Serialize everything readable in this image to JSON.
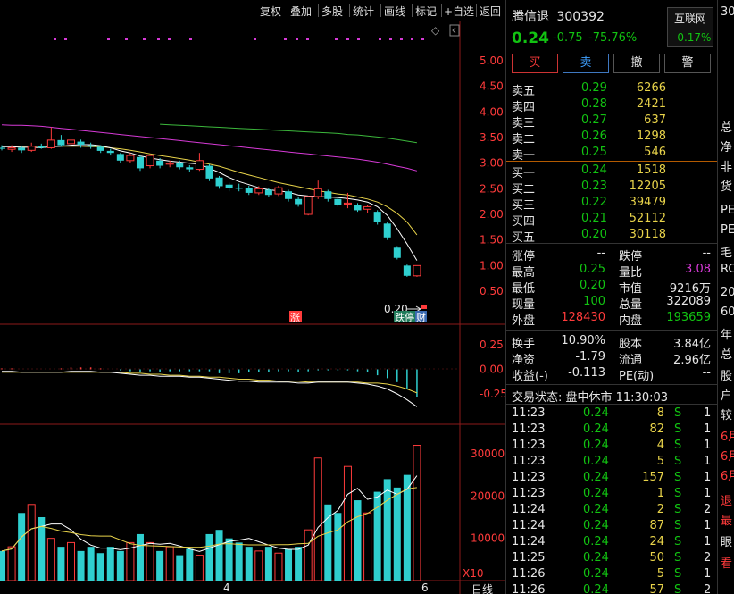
{
  "toolbar": {
    "items": [
      "复权",
      "叠加",
      "多股",
      "统计",
      "画线",
      "标记",
      "+自选",
      "返回"
    ],
    "diamond": "◇"
  },
  "chart": {
    "price_axis": [
      "5.00",
      "4.50",
      "4.00",
      "3.50",
      "3.00",
      "2.50",
      "2.00",
      "1.50",
      "1.00",
      "0.50"
    ],
    "macd_axis": [
      "0.25",
      "0.00",
      "-0.25"
    ],
    "vol_axis": [
      "30000",
      "20000",
      "10000"
    ],
    "vol_unit": "X10",
    "x_axis": [
      "4",
      "6",
      "日线"
    ],
    "marker_zhang": "涨",
    "last_price_label": "0.20",
    "tag_limit_down": "跌停",
    "tag_cai": "财",
    "candles": [
      {
        "o": 3.3,
        "c": 3.28,
        "h": 3.35,
        "l": 3.25
      },
      {
        "o": 3.27,
        "c": 3.3,
        "h": 3.35,
        "l": 3.22
      },
      {
        "o": 3.3,
        "c": 3.25,
        "h": 3.33,
        "l": 3.2
      },
      {
        "o": 3.25,
        "c": 3.33,
        "h": 3.4,
        "l": 3.22
      },
      {
        "o": 3.33,
        "c": 3.3,
        "h": 3.38,
        "l": 3.28
      },
      {
        "o": 3.3,
        "c": 3.45,
        "h": 3.7,
        "l": 3.28
      },
      {
        "o": 3.45,
        "c": 3.35,
        "h": 3.55,
        "l": 3.32
      },
      {
        "o": 3.38,
        "c": 3.45,
        "h": 3.5,
        "l": 3.35
      },
      {
        "o": 3.42,
        "c": 3.36,
        "h": 3.46,
        "l": 3.3
      },
      {
        "o": 3.35,
        "c": 3.32,
        "h": 3.4,
        "l": 3.28
      },
      {
        "o": 3.32,
        "c": 3.24,
        "h": 3.35,
        "l": 3.2
      },
      {
        "o": 3.24,
        "c": 3.2,
        "h": 3.28,
        "l": 3.15
      },
      {
        "o": 3.18,
        "c": 3.05,
        "h": 3.2,
        "l": 3.0
      },
      {
        "o": 3.05,
        "c": 3.15,
        "h": 3.2,
        "l": 3.0
      },
      {
        "o": 3.12,
        "c": 2.9,
        "h": 3.15,
        "l": 2.85
      },
      {
        "o": 2.95,
        "c": 3.15,
        "h": 3.18,
        "l": 2.9
      },
      {
        "o": 3.05,
        "c": 2.95,
        "h": 3.1,
        "l": 2.9
      },
      {
        "o": 2.98,
        "c": 3.0,
        "h": 3.05,
        "l": 2.92
      },
      {
        "o": 3.0,
        "c": 2.92,
        "h": 3.05,
        "l": 2.88
      },
      {
        "o": 2.92,
        "c": 2.88,
        "h": 2.96,
        "l": 2.82
      },
      {
        "o": 2.88,
        "c": 3.05,
        "h": 3.2,
        "l": 2.85
      },
      {
        "o": 2.95,
        "c": 2.7,
        "h": 2.98,
        "l": 2.65
      },
      {
        "o": 2.72,
        "c": 2.55,
        "h": 2.75,
        "l": 2.5
      },
      {
        "o": 2.58,
        "c": 2.52,
        "h": 2.62,
        "l": 2.45
      },
      {
        "o": 2.52,
        "c": 2.5,
        "h": 2.6,
        "l": 2.45
      },
      {
        "o": 2.52,
        "c": 2.42,
        "h": 2.56,
        "l": 2.38
      },
      {
        "o": 2.42,
        "c": 2.5,
        "h": 2.55,
        "l": 2.38
      },
      {
        "o": 2.48,
        "c": 2.38,
        "h": 2.52,
        "l": 2.34
      },
      {
        "o": 2.4,
        "c": 2.52,
        "h": 2.56,
        "l": 2.36
      },
      {
        "o": 2.45,
        "c": 2.3,
        "h": 2.48,
        "l": 2.25
      },
      {
        "o": 2.3,
        "c": 2.2,
        "h": 2.34,
        "l": 2.15
      },
      {
        "o": 2.0,
        "c": 2.35,
        "h": 2.36,
        "l": 1.98
      },
      {
        "o": 2.35,
        "c": 2.5,
        "h": 2.66,
        "l": 2.3
      },
      {
        "o": 2.45,
        "c": 2.3,
        "h": 2.48,
        "l": 2.25
      },
      {
        "o": 2.3,
        "c": 2.18,
        "h": 2.35,
        "l": 2.15
      },
      {
        "o": 2.2,
        "c": 2.22,
        "h": 2.42,
        "l": 2.12
      },
      {
        "o": 2.18,
        "c": 2.08,
        "h": 2.22,
        "l": 2.05
      },
      {
        "o": 2.1,
        "c": 2.15,
        "h": 2.18,
        "l": 2.02
      },
      {
        "o": 2.05,
        "c": 1.85,
        "h": 2.08,
        "l": 1.8
      },
      {
        "o": 1.82,
        "c": 1.55,
        "h": 1.85,
        "l": 1.5
      },
      {
        "o": 1.35,
        "c": 1.15,
        "h": 1.38,
        "l": 1.12
      },
      {
        "o": 1.0,
        "c": 0.8,
        "h": 1.02,
        "l": 0.78
      },
      {
        "o": 0.8,
        "c": 1.0,
        "h": 1.0,
        "l": 0.78
      }
    ],
    "ma_short": [
      3.32,
      3.32,
      3.31,
      3.31,
      3.3,
      3.32,
      3.33,
      3.35,
      3.36,
      3.36,
      3.34,
      3.3,
      3.24,
      3.2,
      3.14,
      3.1,
      3.07,
      3.04,
      3.02,
      3.0,
      2.98,
      2.9,
      2.82,
      2.72,
      2.64,
      2.58,
      2.52,
      2.48,
      2.46,
      2.43,
      2.38,
      2.36,
      2.35,
      2.34,
      2.33,
      2.31,
      2.28,
      2.24,
      2.15,
      1.98,
      1.72,
      1.42,
      1.1
    ],
    "ma_mid": [
      3.33,
      3.33,
      3.33,
      3.33,
      3.33,
      3.33,
      3.33,
      3.33,
      3.33,
      3.32,
      3.32,
      3.3,
      3.28,
      3.25,
      3.22,
      3.18,
      3.15,
      3.12,
      3.09,
      3.06,
      3.02,
      2.98,
      2.94,
      2.88,
      2.82,
      2.77,
      2.72,
      2.67,
      2.62,
      2.58,
      2.54,
      2.5,
      2.46,
      2.43,
      2.4,
      2.38,
      2.34,
      2.3,
      2.24,
      2.15,
      2.02,
      1.85,
      1.6
    ],
    "ma_long": [
      3.75,
      3.74,
      3.74,
      3.73,
      3.72,
      3.7,
      3.68,
      3.66,
      3.64,
      3.62,
      3.6,
      3.58,
      3.56,
      3.54,
      3.52,
      3.5,
      3.48,
      3.46,
      3.44,
      3.42,
      3.4,
      3.38,
      3.36,
      3.34,
      3.32,
      3.3,
      3.28,
      3.26,
      3.24,
      3.22,
      3.2,
      3.18,
      3.16,
      3.14,
      3.12,
      3.1,
      3.08,
      3.05,
      3.02,
      2.98,
      2.94,
      2.9,
      2.85
    ],
    "ma_green": [
      null,
      null,
      null,
      null,
      null,
      null,
      null,
      null,
      null,
      null,
      null,
      null,
      null,
      null,
      null,
      null,
      3.76,
      3.75,
      3.74,
      3.73,
      3.72,
      3.71,
      3.7,
      3.69,
      3.68,
      3.67,
      3.66,
      3.65,
      3.64,
      3.63,
      3.62,
      3.61,
      3.6,
      3.59,
      3.58,
      3.56,
      3.55,
      3.53,
      3.51,
      3.49,
      3.46,
      3.43,
      3.4
    ],
    "volumes": [
      7000,
      8000,
      16000,
      18000,
      15000,
      10000,
      8000,
      9000,
      7000,
      8000,
      6500,
      8000,
      7000,
      9000,
      11000,
      9000,
      7000,
      8000,
      6000,
      7500,
      6000,
      11000,
      12000,
      10000,
      9000,
      8000,
      7000,
      8000,
      6500,
      7500,
      8000,
      12000,
      29000,
      18000,
      16000,
      27000,
      19000,
      16000,
      21000,
      24000,
      22000,
      25000,
      32000
    ],
    "macd_dif": [
      -0.02,
      -0.02,
      -0.03,
      -0.03,
      -0.03,
      -0.03,
      -0.03,
      -0.02,
      -0.02,
      -0.02,
      -0.03,
      -0.03,
      -0.04,
      -0.05,
      -0.06,
      -0.06,
      -0.07,
      -0.07,
      -0.07,
      -0.08,
      -0.08,
      -0.09,
      -0.1,
      -0.11,
      -0.12,
      -0.12,
      -0.13,
      -0.13,
      -0.13,
      -0.13,
      -0.14,
      -0.14,
      -0.13,
      -0.13,
      -0.13,
      -0.13,
      -0.14,
      -0.15,
      -0.17,
      -0.2,
      -0.25,
      -0.31,
      -0.38
    ],
    "macd_dea": [
      -0.03,
      -0.03,
      -0.03,
      -0.03,
      -0.03,
      -0.03,
      -0.03,
      -0.03,
      -0.03,
      -0.03,
      -0.03,
      -0.03,
      -0.03,
      -0.04,
      -0.04,
      -0.05,
      -0.05,
      -0.06,
      -0.06,
      -0.07,
      -0.07,
      -0.08,
      -0.08,
      -0.09,
      -0.1,
      -0.1,
      -0.11,
      -0.11,
      -0.12,
      -0.12,
      -0.12,
      -0.13,
      -0.13,
      -0.13,
      -0.13,
      -0.13,
      -0.13,
      -0.14,
      -0.14,
      -0.15,
      -0.17,
      -0.2,
      -0.24
    ],
    "macd_bar": [
      0.01,
      0.01,
      0.0,
      0.0,
      0.0,
      0.0,
      0.01,
      0.02,
      0.02,
      0.02,
      0.01,
      0.0,
      -0.01,
      -0.02,
      -0.03,
      -0.02,
      -0.03,
      -0.02,
      -0.02,
      -0.02,
      -0.02,
      -0.02,
      -0.04,
      -0.04,
      -0.04,
      -0.03,
      -0.03,
      -0.03,
      -0.02,
      -0.02,
      -0.03,
      -0.02,
      -0.01,
      -0.01,
      -0.01,
      -0.01,
      -0.02,
      -0.03,
      -0.06,
      -0.09,
      -0.13,
      -0.2,
      -0.28
    ]
  },
  "quote": {
    "name": "腾信退",
    "code": "300392",
    "price": "0.24",
    "change": "-0.75",
    "change_pct": "-75.76%",
    "index_name": "互联网",
    "index_pct": "-0.17%",
    "buttons": {
      "buy": "买",
      "sell": "卖",
      "cancel": "撤",
      "alert": "警"
    },
    "asks": [
      {
        "label": "卖五",
        "price": "0.29",
        "vol": "6266"
      },
      {
        "label": "卖四",
        "price": "0.28",
        "vol": "2421"
      },
      {
        "label": "卖三",
        "price": "0.27",
        "vol": "637"
      },
      {
        "label": "卖二",
        "price": "0.26",
        "vol": "1298"
      },
      {
        "label": "卖一",
        "price": "0.25",
        "vol": "546"
      }
    ],
    "bids": [
      {
        "label": "买一",
        "price": "0.24",
        "vol": "1518"
      },
      {
        "label": "买二",
        "price": "0.23",
        "vol": "12205"
      },
      {
        "label": "买三",
        "price": "0.22",
        "vol": "39479"
      },
      {
        "label": "买四",
        "price": "0.21",
        "vol": "52112"
      },
      {
        "label": "买五",
        "price": "0.20",
        "vol": "30118"
      }
    ],
    "stats": [
      {
        "l1": "涨停",
        "v1": "--",
        "l2": "跌停",
        "v2": "--"
      },
      {
        "l1": "最高",
        "v1": "0.25",
        "l2": "量比",
        "v2": "3.08"
      },
      {
        "l1": "最低",
        "v1": "0.20",
        "l2": "市值",
        "v2": "9216万"
      },
      {
        "l1": "现量",
        "v1": "100",
        "l2": "总量",
        "v2": "322089"
      },
      {
        "l1": "外盘",
        "v1": "128430",
        "l2": "内盘",
        "v2": "193659"
      }
    ],
    "fin": [
      {
        "l1": "换手",
        "v1": "10.90%",
        "l2": "股本",
        "v2": "3.84亿"
      },
      {
        "l1": "净资",
        "v1": "-1.79",
        "l2": "流通",
        "v2": "2.96亿"
      },
      {
        "l1": "收益(-)",
        "v1": "-0.113",
        "l2": "PE(动)",
        "v2": "--"
      }
    ],
    "trade_status": "交易状态: 盘中休市 11:30:03",
    "ticks": [
      {
        "t": "11:23",
        "p": "0.24",
        "v": "8",
        "s": "S",
        "n": "1"
      },
      {
        "t": "11:23",
        "p": "0.24",
        "v": "82",
        "s": "S",
        "n": "1"
      },
      {
        "t": "11:23",
        "p": "0.24",
        "v": "4",
        "s": "S",
        "n": "1"
      },
      {
        "t": "11:23",
        "p": "0.24",
        "v": "5",
        "s": "S",
        "n": "1"
      },
      {
        "t": "11:23",
        "p": "0.24",
        "v": "157",
        "s": "S",
        "n": "1"
      },
      {
        "t": "11:23",
        "p": "0.24",
        "v": "1",
        "s": "S",
        "n": "1"
      },
      {
        "t": "11:24",
        "p": "0.24",
        "v": "2",
        "s": "S",
        "n": "2"
      },
      {
        "t": "11:24",
        "p": "0.24",
        "v": "87",
        "s": "S",
        "n": "1"
      },
      {
        "t": "11:24",
        "p": "0.24",
        "v": "24",
        "s": "S",
        "n": "1"
      },
      {
        "t": "11:25",
        "p": "0.24",
        "v": "50",
        "s": "S",
        "n": "2"
      },
      {
        "t": "11:26",
        "p": "0.24",
        "v": "5",
        "s": "S",
        "n": "1"
      },
      {
        "t": "11:26",
        "p": "0.24",
        "v": "57",
        "s": "S",
        "n": "2"
      }
    ]
  },
  "edge": {
    "items": [
      "30",
      "总",
      "净",
      "非",
      "货",
      "PE",
      "PE",
      "毛",
      "RC",
      "20",
      "60",
      "年",
      "总",
      "股",
      "户",
      "较",
      "6月",
      "6月",
      "6月",
      "退",
      "最",
      "眼",
      "看"
    ]
  },
  "colors": {
    "up": "#ff3b3b",
    "down": "#2fd0d0",
    "ma_short": "#ffffff",
    "ma_mid": "#e8d34a",
    "ma_long": "#d63ad6",
    "ma_green": "#3cb83c"
  }
}
